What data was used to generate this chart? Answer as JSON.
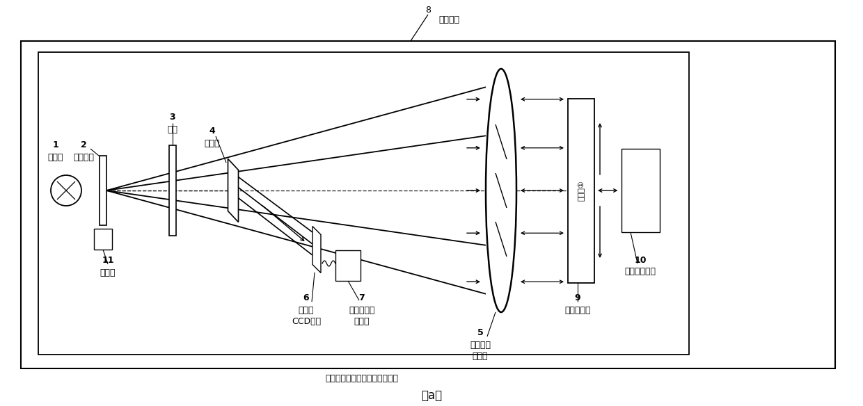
{
  "title": "（a）",
  "label_8": "8",
  "label_8_text": "光学平台",
  "main_box_label": "光电系统动态跟踪精度测量装置",
  "texts": {
    "1": "1",
    "laser": "激光器",
    "2": "2",
    "milky": "乳白玻璃",
    "3": "3",
    "aperture": "光阀",
    "4": "4",
    "bs": "分束镜",
    "5": "5",
    "collimator1": "平行光管",
    "collimator2": "准直镜",
    "6": "6",
    "ccd1": "高帧频",
    "ccd2": "CCD相机",
    "7": "7",
    "comp1": "计算数据处",
    "comp2": "理单元",
    "9": "9",
    "flat": "平面反射镜",
    "10": "10",
    "auto": "光学自准直仪",
    "11": "11",
    "screen": "观察屏",
    "reflector": "反射面①"
  },
  "fig_width": 12.4,
  "fig_height": 5.84,
  "dpi": 100
}
